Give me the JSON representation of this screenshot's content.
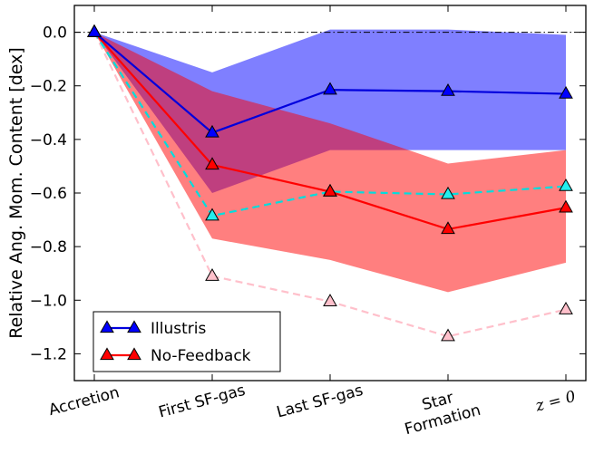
{
  "chart_data": {
    "type": "line",
    "title": "",
    "xlabel": "",
    "ylabel": "Relative Ang. Mom. Content [dex]",
    "ylim": [
      -1.3,
      0.1
    ],
    "yticks": [
      0.0,
      -0.2,
      -0.4,
      -0.6,
      -0.8,
      -1.0,
      -1.2
    ],
    "ytick_labels": [
      "0.0",
      "−0.2",
      "−0.4",
      "−0.6",
      "−0.8",
      "−1.0",
      "−1.2"
    ],
    "categories": [
      {
        "lines": [
          "Accretion"
        ]
      },
      {
        "lines": [
          "First SF-gas"
        ]
      },
      {
        "lines": [
          "Last SF-gas"
        ]
      },
      {
        "lines": [
          "Star",
          "Formation"
        ]
      },
      {
        "lines": [
          "z = 0"
        ],
        "math": true
      }
    ],
    "reference_line": {
      "y": 0.0,
      "style": "dashdot",
      "color": "#000000"
    },
    "bands": [
      {
        "series": "Illustris",
        "color": "#0000ff",
        "opacity": 0.5,
        "upper": [
          0.0,
          -0.15,
          0.01,
          0.01,
          -0.01
        ],
        "lower": [
          0.0,
          -0.6,
          -0.44,
          -0.44,
          -0.44
        ]
      },
      {
        "series": "No-Feedback",
        "color": "#ff0000",
        "opacity": 0.5,
        "upper": [
          0.0,
          -0.22,
          -0.34,
          -0.49,
          -0.44
        ],
        "lower": [
          0.0,
          -0.77,
          -0.85,
          -0.97,
          -0.86
        ]
      }
    ],
    "series": [
      {
        "name": "Illustris",
        "color": "#0000dd",
        "marker_fill": "#0000ff",
        "dash": false,
        "values": [
          0.0,
          -0.375,
          -0.215,
          -0.22,
          -0.23
        ]
      },
      {
        "name": "No-Feedback",
        "color": "#ff0000",
        "marker_fill": "#ff0000",
        "dash": false,
        "values": [
          0.0,
          -0.495,
          -0.595,
          -0.735,
          -0.655
        ]
      },
      {
        "name": "",
        "color": "#00dddd",
        "marker_fill": "#22eeee",
        "dash": true,
        "values": [
          0.0,
          -0.685,
          -0.595,
          -0.605,
          -0.575
        ]
      },
      {
        "name": "",
        "color": "#ffc0cb",
        "marker_fill": "#ffc0cb",
        "dash": true,
        "values": [
          0.0,
          -0.91,
          -1.005,
          -1.135,
          -1.035
        ]
      }
    ],
    "legend": {
      "position": "lower-left",
      "entries": [
        {
          "label": "Illustris",
          "color": "#0000dd",
          "marker_fill": "#0000ff"
        },
        {
          "label": "No-Feedback",
          "color": "#ff0000",
          "marker_fill": "#ff0000"
        }
      ]
    },
    "grid": false
  }
}
